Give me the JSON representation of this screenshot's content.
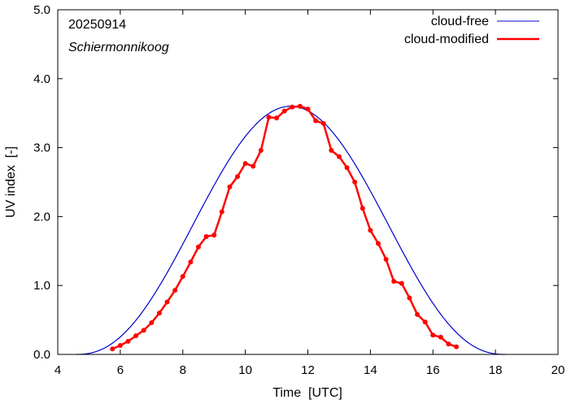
{
  "chart_data": {
    "type": "line",
    "xlabel": "Time  [UTC]",
    "ylabel": "UV index  [-]",
    "xlim": [
      4,
      20
    ],
    "ylim": [
      0.0,
      5.0
    ],
    "xticks": [
      "4",
      "6",
      "8",
      "10",
      "12",
      "14",
      "16",
      "18",
      "20"
    ],
    "yticks": [
      "0.0",
      "1.0",
      "2.0",
      "3.0",
      "4.0",
      "5.0"
    ],
    "annotations": [
      "20250914",
      "Schiermonnikoog"
    ],
    "legend_position": "top-right",
    "grid": false,
    "series": [
      {
        "name": "cloud-free",
        "color": "#0000cc",
        "peak_time": 11.45,
        "peak_value": 3.6,
        "x": [
          4.6,
          5.0,
          5.4,
          5.8,
          6.2,
          6.6,
          7.0,
          7.4,
          7.8,
          8.2,
          8.6,
          9.0,
          9.4,
          9.8,
          10.2,
          10.6,
          11.0,
          11.45,
          11.8,
          12.2,
          12.6,
          13.0,
          13.4,
          13.8,
          14.2,
          14.6,
          15.0,
          15.4,
          15.8,
          16.2,
          16.6,
          17.0,
          17.4,
          17.8,
          18.3
        ],
        "values": [
          0.0,
          0.02,
          0.05,
          0.11,
          0.2,
          0.33,
          0.51,
          0.74,
          1.01,
          1.33,
          1.68,
          2.05,
          2.42,
          2.76,
          3.06,
          3.33,
          3.52,
          3.6,
          3.57,
          3.46,
          3.25,
          2.98,
          2.66,
          2.3,
          1.93,
          1.56,
          1.21,
          0.89,
          0.62,
          0.4,
          0.24,
          0.12,
          0.05,
          0.01,
          0.0
        ]
      },
      {
        "name": "cloud-modified",
        "color": "#ff0000",
        "x": [
          5.75,
          6.0,
          6.25,
          6.5,
          6.75,
          7.0,
          7.25,
          7.5,
          7.75,
          8.0,
          8.25,
          8.5,
          8.75,
          9.0,
          9.25,
          9.5,
          9.75,
          10.0,
          10.25,
          10.5,
          10.75,
          11.0,
          11.25,
          11.5,
          11.75,
          12.0,
          12.25,
          12.5,
          12.75,
          13.0,
          13.25,
          13.5,
          13.75,
          14.0,
          14.25,
          14.5,
          14.75,
          15.0,
          15.25,
          15.5,
          15.75,
          16.0,
          16.25,
          16.5,
          16.75
        ],
        "values": [
          0.08,
          0.13,
          0.19,
          0.27,
          0.35,
          0.46,
          0.6,
          0.76,
          0.93,
          1.13,
          1.34,
          1.56,
          1.71,
          1.73,
          2.07,
          2.43,
          2.58,
          2.77,
          2.73,
          2.96,
          3.44,
          3.43,
          3.53,
          3.59,
          3.6,
          3.56,
          3.39,
          3.35,
          2.96,
          2.87,
          2.71,
          2.5,
          2.12,
          1.8,
          1.61,
          1.38,
          1.06,
          1.03,
          0.82,
          0.58,
          0.47,
          0.28,
          0.25,
          0.15,
          0.11
        ]
      }
    ]
  }
}
